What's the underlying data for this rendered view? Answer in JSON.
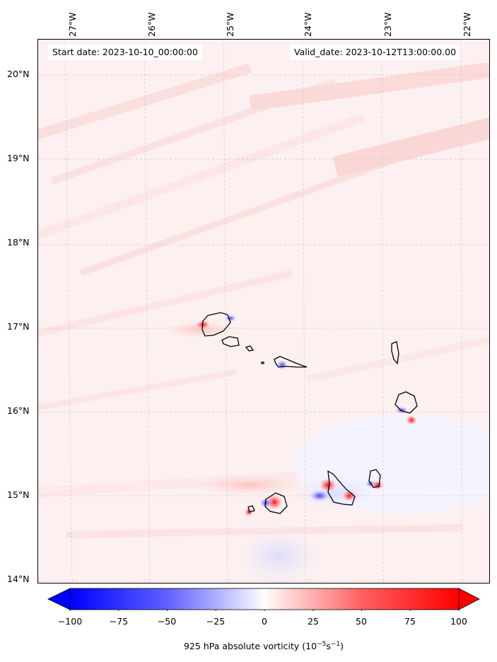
{
  "map": {
    "start_date": "Start date: 2023-10-10_00:00:00",
    "valid_date": "Valid_date: 2023-10-12T13:00:00.00",
    "lon_labels": [
      "27°W",
      "26°W",
      "25°W",
      "24°W",
      "23°W",
      "22°W"
    ],
    "lat_labels": [
      "20°N",
      "19°N",
      "18°N",
      "17°N",
      "16°N",
      "15°N",
      "14°N"
    ],
    "colorbar": {
      "ticks": [
        "−100",
        "−75",
        "−50",
        "−25",
        "0",
        "25",
        "50",
        "75",
        "100"
      ],
      "min": -100,
      "max": 100,
      "title_prefix": "925 hPa absolute vorticity (10",
      "title_exp1": "−5",
      "title_mid": "s",
      "title_exp2": "−1",
      "title_suffix": ")",
      "colors": {
        "negative": "#0000ff",
        "zero": "#ffffff",
        "positive": "#ff0000"
      }
    },
    "colors": {
      "background_tint": "#fdf0f0",
      "coastline": "#000000",
      "gridline": "#bbbbbb"
    }
  }
}
